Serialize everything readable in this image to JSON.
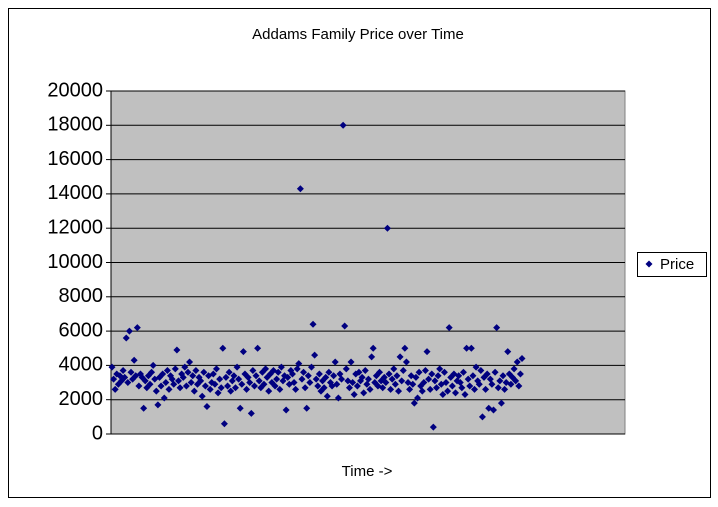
{
  "chart_data": {
    "type": "scatter",
    "title": "Addams Family Price over Time",
    "x_label": "Time ->",
    "series": [
      {
        "name": "Price",
        "color": "#000080",
        "values": [
          3900,
          3200,
          2600,
          3500,
          2900,
          3400,
          3100,
          3700,
          3300,
          5600,
          3000,
          6000,
          3600,
          3200,
          4300,
          3400,
          6200,
          2800,
          3500,
          3300,
          1500,
          3100,
          2700,
          3400,
          2900,
          3600,
          4000,
          3200,
          2500,
          1700,
          3300,
          2800,
          3500,
          2100,
          3000,
          3700,
          2600,
          3400,
          3200,
          2900,
          3800,
          4900,
          3100,
          2700,
          3500,
          3300,
          3900,
          2800,
          3600,
          4200,
          3000,
          3400,
          2500,
          3700,
          2900,
          3300,
          3100,
          2200,
          3600,
          2800,
          1600,
          3400,
          2600,
          3000,
          3500,
          2900,
          3800,
          2400,
          3200,
          2700,
          5000,
          600,
          3300,
          2800,
          3600,
          2500,
          3100,
          3400,
          2700,
          3900,
          3200,
          1500,
          2900,
          4800,
          3500,
          2600,
          3300,
          3000,
          1200,
          3700,
          2800,
          3400,
          5000,
          3100,
          2700,
          3600,
          2900,
          3800,
          3300,
          2500,
          3500,
          3000,
          3700,
          2800,
          3200,
          3600,
          2600,
          3900,
          3100,
          3400,
          1400,
          3300,
          2900,
          3700,
          3500,
          3000,
          2600,
          3800,
          4100,
          14300,
          3200,
          3600,
          2700,
          1500,
          3400,
          3000,
          3900,
          6400,
          4600,
          3200,
          2800,
          3500,
          2500,
          3100,
          2700,
          3300,
          2200,
          3600,
          3000,
          2800,
          3400,
          4200,
          2900,
          2100,
          3500,
          3200,
          18000,
          6300,
          3800,
          3100,
          2700,
          4200,
          3000,
          2300,
          3500,
          2800,
          3600,
          3100,
          3300,
          2400,
          3700,
          2900,
          3200,
          2600,
          4500,
          5000,
          3000,
          3400,
          2800,
          3600,
          3100,
          2700,
          3300,
          3000,
          12000,
          3500,
          2600,
          3200,
          3800,
          2900,
          3400,
          2500,
          4500,
          3100,
          3700,
          5000,
          4200,
          3000,
          2600,
          3400,
          2900,
          1800,
          3300,
          2100,
          3600,
          2800,
          2500,
          3000,
          3700,
          4800,
          3200,
          2600,
          3500,
          400,
          3100,
          2700,
          3400,
          3800,
          2900,
          2300,
          3600,
          3000,
          2500,
          6200,
          3300,
          2800,
          3500,
          2400,
          3100,
          3400,
          3000,
          2700,
          3600,
          2300,
          5000,
          3200,
          2800,
          5000,
          3400,
          2600,
          3900,
          3100,
          2900,
          3700,
          1000,
          3300,
          2600,
          3500,
          1500,
          3200,
          2900,
          1400,
          3600,
          6200,
          2700,
          3100,
          1800,
          3400,
          2600,
          3000,
          4800,
          3500,
          2900,
          3300,
          3800,
          3100,
          4200,
          2800,
          3500,
          4400
        ]
      }
    ],
    "ylim": [
      0,
      20000
    ],
    "yticks": [
      0,
      2000,
      4000,
      6000,
      8000,
      10000,
      12000,
      14000,
      16000,
      18000,
      20000
    ],
    "grid": true,
    "plot_background": "#c0c0c0",
    "legend": "right"
  }
}
